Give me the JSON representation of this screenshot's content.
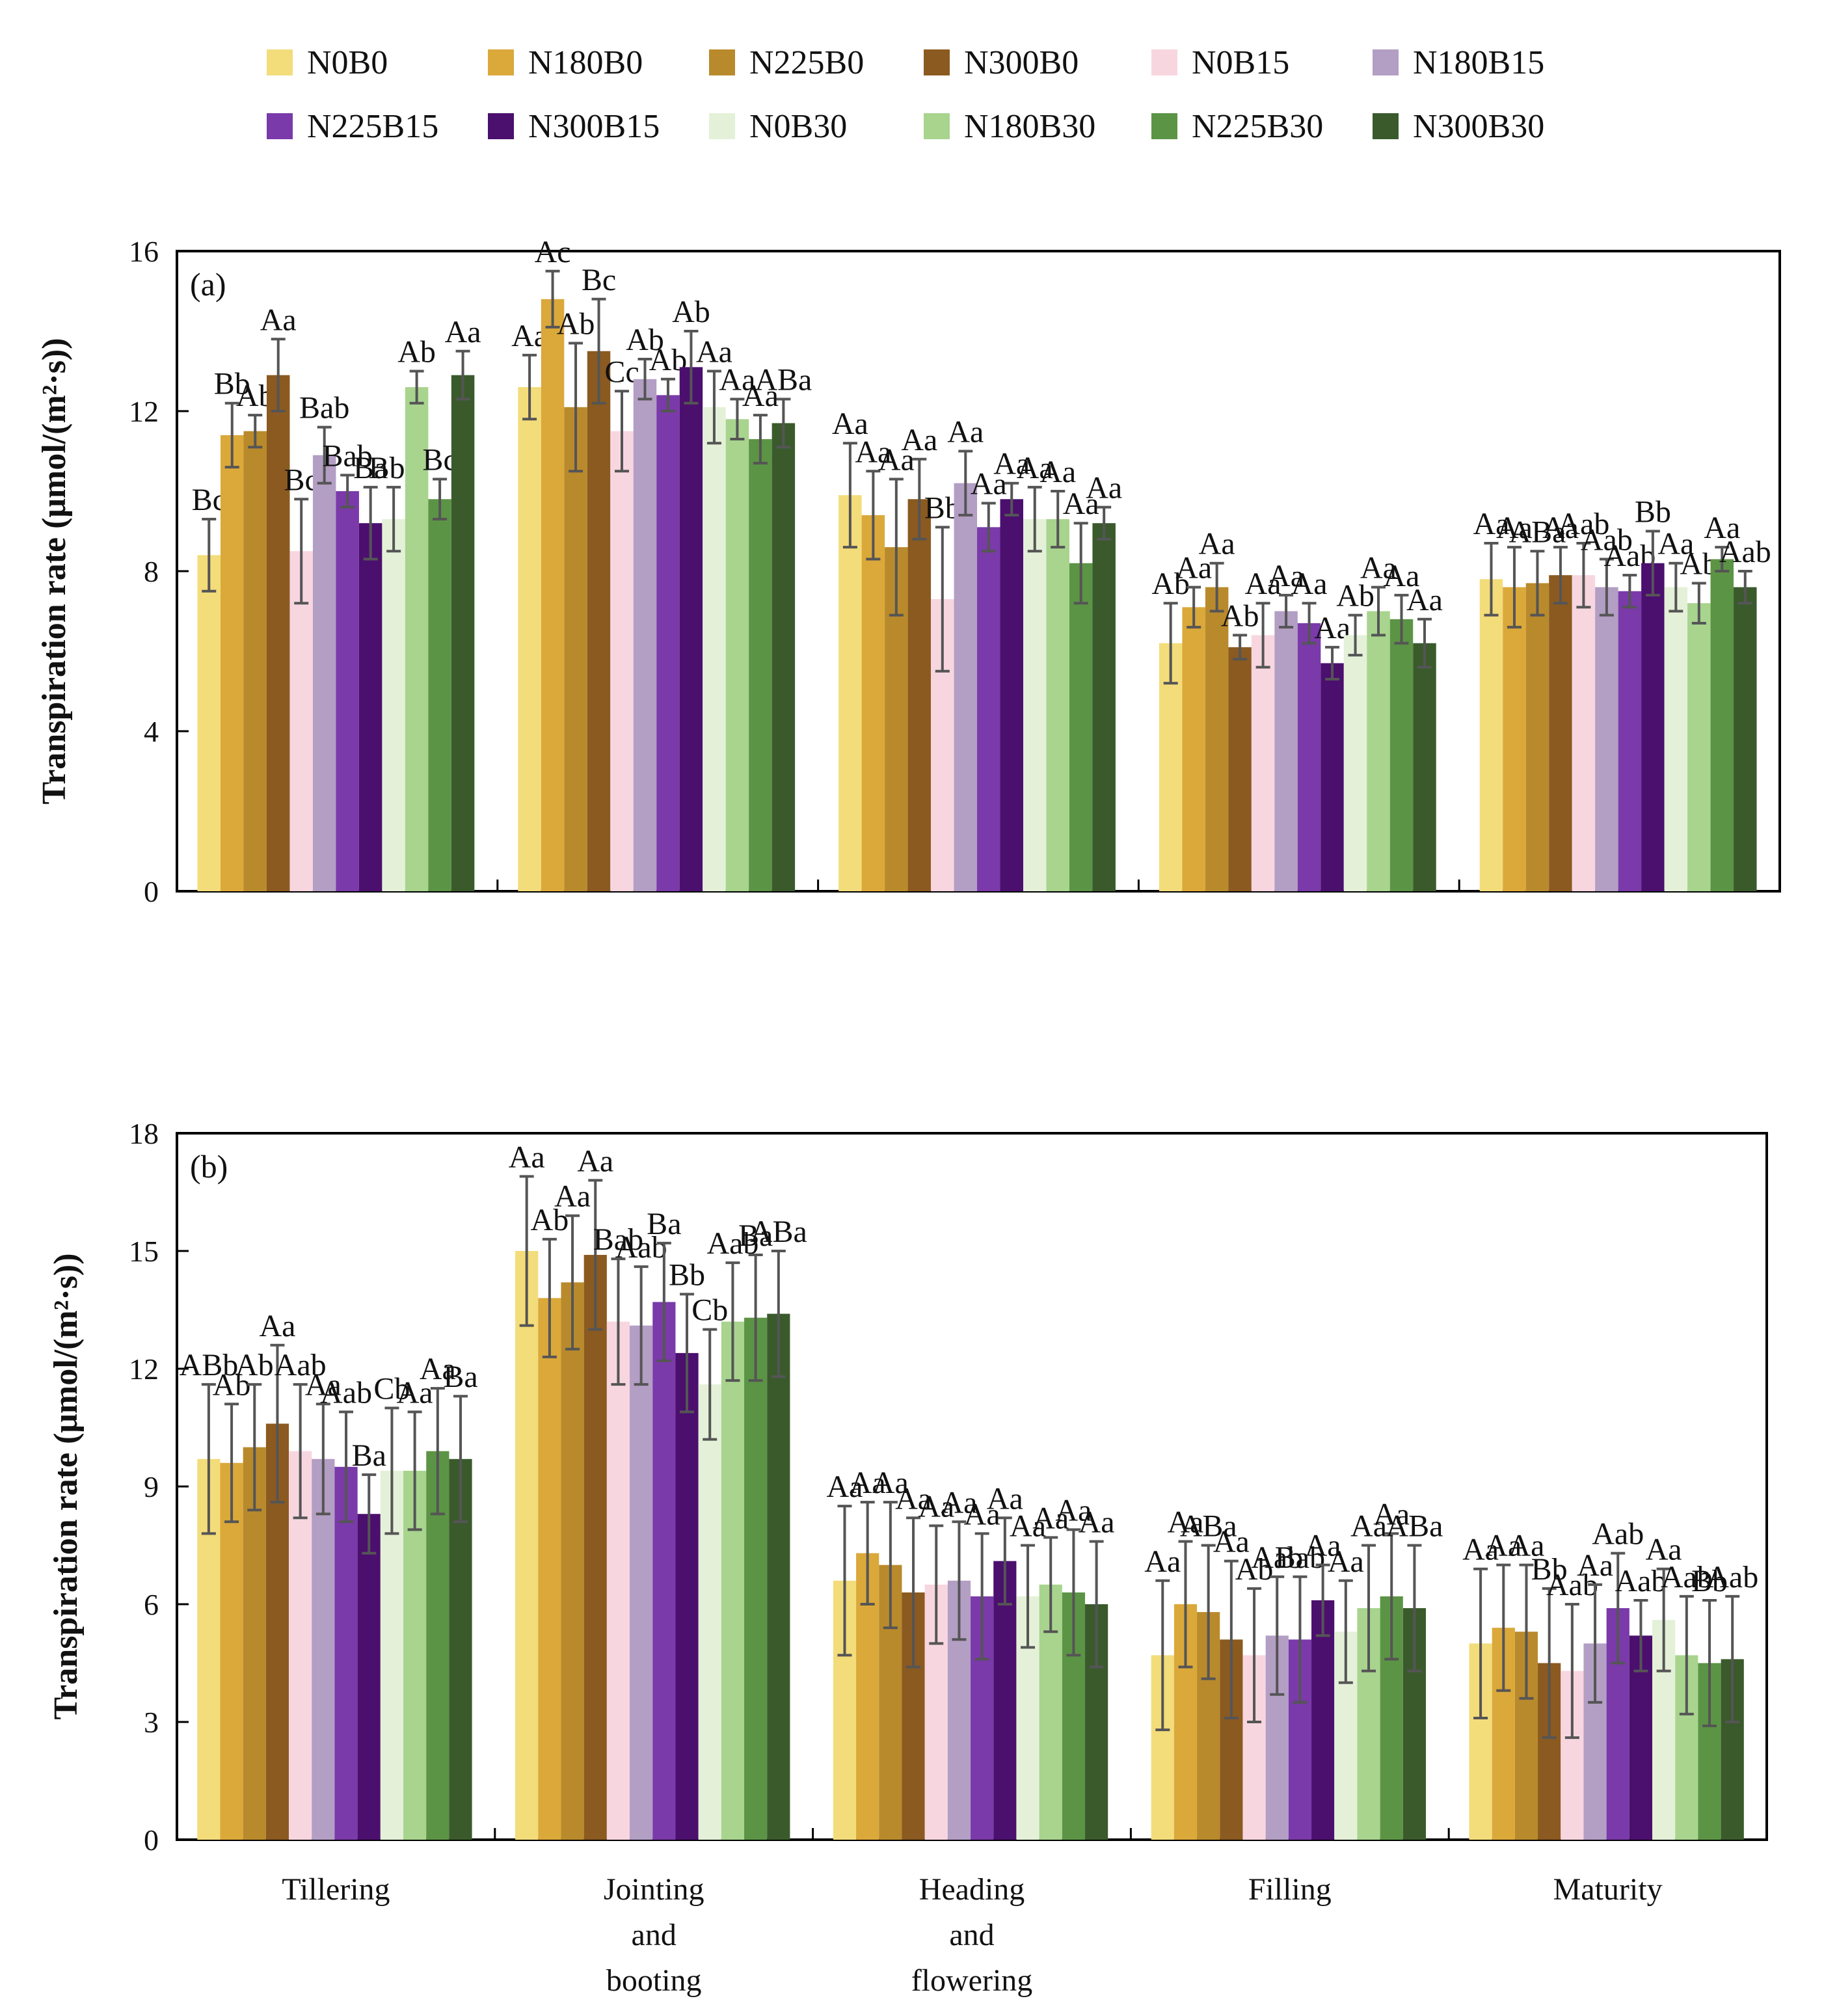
{
  "legend": {
    "items": [
      {
        "label": "N0B0",
        "color": "#f3dc7a"
      },
      {
        "label": "N180B0",
        "color": "#dba83a"
      },
      {
        "label": "N225B0",
        "color": "#b98a2c"
      },
      {
        "label": "N300B0",
        "color": "#8b5a20"
      },
      {
        "label": "N0B15",
        "color": "#f8d6e0"
      },
      {
        "label": "N180B15",
        "color": "#b39ec4"
      },
      {
        "label": "N225B15",
        "color": "#7a3aaa"
      },
      {
        "label": "N300B15",
        "color": "#4b0f6e"
      },
      {
        "label": "N0B30",
        "color": "#e4f1d8"
      },
      {
        "label": "N180B30",
        "color": "#a8d48e"
      },
      {
        "label": "N225B30",
        "color": "#5c9445"
      },
      {
        "label": "N300B30",
        "color": "#3a5a2c"
      }
    ]
  },
  "chart_data": [
    {
      "type": "bar",
      "panel": "(a)",
      "ylabel": "Transpiration rate (μmol/(m²·s))",
      "ylim": [
        0,
        16
      ],
      "yticks": [
        0,
        4,
        8,
        12,
        16
      ],
      "categories": [
        "Tillering",
        "Jointing and booting",
        "Heading and flowering",
        "Filling",
        "Maturity"
      ],
      "values": [
        [
          8.4,
          11.4,
          11.5,
          12.9,
          8.5,
          10.9,
          10.0,
          9.2,
          9.3,
          12.6,
          9.8,
          12.9
        ],
        [
          12.6,
          14.8,
          12.1,
          13.5,
          11.5,
          12.8,
          12.4,
          13.1,
          12.1,
          11.8,
          11.3,
          11.7
        ],
        [
          9.9,
          9.4,
          8.6,
          9.8,
          7.3,
          10.2,
          9.1,
          9.8,
          9.3,
          9.3,
          8.2,
          9.2
        ],
        [
          6.2,
          7.1,
          7.6,
          6.1,
          6.4,
          7.0,
          6.7,
          5.7,
          6.4,
          7.0,
          6.8,
          6.2
        ],
        [
          7.8,
          7.6,
          7.7,
          7.9,
          7.9,
          7.6,
          7.5,
          8.2,
          7.6,
          7.2,
          8.3,
          7.6
        ]
      ],
      "errors": [
        [
          0.9,
          0.8,
          0.4,
          0.9,
          1.3,
          0.7,
          0.4,
          0.9,
          0.8,
          0.4,
          0.5,
          0.6
        ],
        [
          0.8,
          0.7,
          1.6,
          1.3,
          1.0,
          0.5,
          0.4,
          0.9,
          0.9,
          0.5,
          0.6,
          0.6
        ],
        [
          1.3,
          1.1,
          1.7,
          1.0,
          1.8,
          0.8,
          0.6,
          0.4,
          0.8,
          0.7,
          1.0,
          0.4
        ],
        [
          1.0,
          0.5,
          0.6,
          0.3,
          0.8,
          0.4,
          0.5,
          0.4,
          0.5,
          0.6,
          0.6,
          0.6
        ],
        [
          0.9,
          1.0,
          0.8,
          0.7,
          0.8,
          0.7,
          0.4,
          0.8,
          0.6,
          0.5,
          0.3,
          0.4
        ]
      ],
      "labels": [
        [
          "Bc",
          "Bb",
          "Ab",
          "Aa",
          "Bc",
          "Bab",
          "Bab",
          "Ba",
          "Bbc",
          "Ab",
          "Bc",
          "Aa"
        ],
        [
          "Aa",
          "Ac",
          "Ab",
          "Bc",
          "Cc",
          "Ab",
          "Ab",
          "Ab",
          "Aa",
          "Aa",
          "Aa",
          "ABa"
        ],
        [
          "Aa",
          "Aa",
          "Aa",
          "Aa",
          "Bb",
          "Aa",
          "Aa",
          "Aa",
          "Aa",
          "Aa",
          "Aa",
          "Aa"
        ],
        [
          "Ab",
          "Aa",
          "Aa",
          "Ab",
          "Aa",
          "Aa",
          "Aa",
          "Aa",
          "Ab",
          "Aa",
          "Aa",
          "Aa"
        ],
        [
          "Aa",
          "Aa",
          "ABa",
          "Aa",
          "Aab",
          "Aab",
          "Aab",
          "Bb",
          "Aa",
          "Ab",
          "Aa",
          "Aab"
        ]
      ]
    },
    {
      "type": "bar",
      "panel": "(b)",
      "ylabel": "Transpiration rate (μmol/(m²·s))",
      "ylim": [
        0,
        18
      ],
      "yticks": [
        0,
        3,
        6,
        9,
        12,
        15,
        18
      ],
      "categories": [
        "Tillering",
        "Jointing and booting",
        "Heading and flowering",
        "Filling",
        "Maturity"
      ],
      "category_lines": [
        [
          "Tillering"
        ],
        [
          "Jointing",
          "and",
          "booting"
        ],
        [
          "Heading",
          "and",
          "flowering"
        ],
        [
          "Filling"
        ],
        [
          "Maturity"
        ]
      ],
      "values": [
        [
          9.7,
          9.6,
          10.0,
          10.6,
          9.9,
          9.7,
          9.5,
          8.3,
          9.4,
          9.4,
          9.9,
          9.7
        ],
        [
          15.0,
          13.8,
          14.2,
          14.9,
          13.2,
          13.1,
          13.7,
          12.4,
          11.6,
          13.2,
          13.3,
          13.4
        ],
        [
          6.6,
          7.3,
          7.0,
          6.3,
          6.5,
          6.6,
          6.2,
          7.1,
          6.2,
          6.5,
          6.3,
          6.0
        ],
        [
          4.7,
          6.0,
          5.8,
          5.1,
          4.7,
          5.2,
          5.1,
          6.1,
          5.3,
          5.9,
          6.2,
          5.9
        ],
        [
          5.0,
          5.4,
          5.3,
          4.5,
          4.3,
          5.0,
          5.9,
          5.2,
          5.6,
          4.7,
          4.5,
          4.6
        ]
      ],
      "errors": [
        [
          1.9,
          1.5,
          1.6,
          2.0,
          1.7,
          1.4,
          1.4,
          1.0,
          1.6,
          1.5,
          1.6,
          1.6
        ],
        [
          1.9,
          1.5,
          1.7,
          1.9,
          1.6,
          1.5,
          1.5,
          1.5,
          1.4,
          1.5,
          1.6,
          1.6
        ],
        [
          1.9,
          1.3,
          1.6,
          1.9,
          1.5,
          1.5,
          1.6,
          1.1,
          1.3,
          1.2,
          1.6,
          1.6
        ],
        [
          1.9,
          1.6,
          1.7,
          2.0,
          1.7,
          1.5,
          1.6,
          0.9,
          1.3,
          1.6,
          1.6,
          1.6
        ],
        [
          1.9,
          1.6,
          1.7,
          1.9,
          1.7,
          1.5,
          1.4,
          0.9,
          1.3,
          1.5,
          1.6,
          1.6
        ]
      ],
      "labels": [
        [
          "ABb",
          "Ab",
          "Ab",
          "Aa",
          "Aab",
          "Aa",
          "Aab",
          "Ba",
          "Cb",
          "Aa",
          "Aa",
          "Ba"
        ],
        [
          "Aa",
          "Ab",
          "Aa",
          "Aa",
          "Bab",
          "Aab",
          "Ba",
          "Bb",
          "Cb",
          "Aab",
          "Ba",
          "ABa"
        ],
        [
          "Aa",
          "Aa",
          "Aa",
          "Aa",
          "Aa",
          "Aa",
          "Aa",
          "Aa",
          "Aa",
          "Aa",
          "Aa",
          "Aa"
        ],
        [
          "Aa",
          "Aa",
          "ABa",
          "Aa",
          "Ab",
          "Aab",
          "Bab",
          "Aa",
          "Aa",
          "Aa",
          "Aa",
          "ABa"
        ],
        [
          "Aa",
          "Aa",
          "Aa",
          "Bb",
          "Aab",
          "Aa",
          "Aab",
          "Aab",
          "Aa",
          "Aab",
          "Bb",
          "Aab"
        ]
      ]
    }
  ]
}
